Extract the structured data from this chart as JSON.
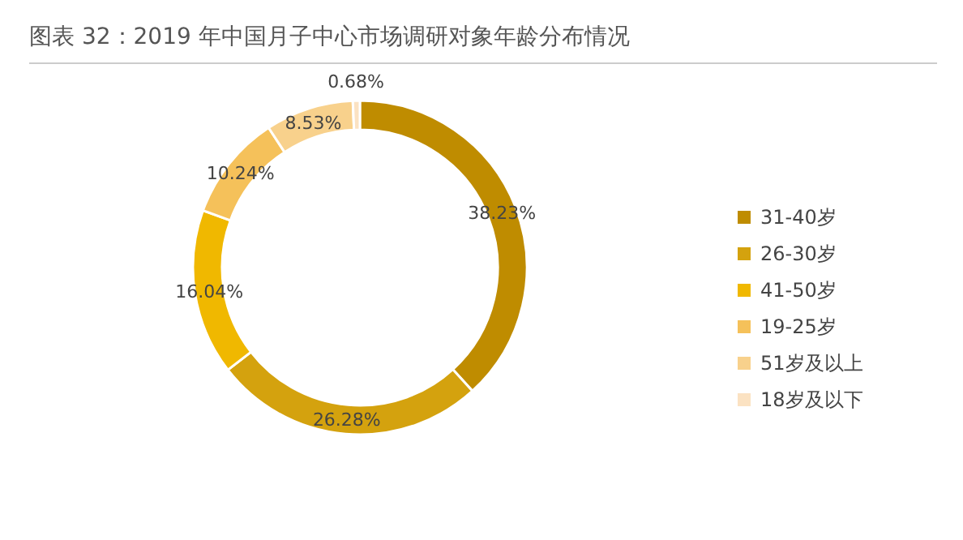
{
  "chart_data": {
    "type": "donut",
    "title": "图表 32：2019 年中国月子中心市场调研对象年龄分布情况",
    "categories": [
      "31-40岁",
      "26-30岁",
      "41-50岁",
      "19-25岁",
      "51岁及以上",
      "18岁及以下"
    ],
    "values": [
      38.23,
      26.28,
      16.04,
      10.24,
      8.53,
      0.68
    ],
    "colors": [
      "#bf8c00",
      "#d4a20e",
      "#f0b800",
      "#f5c15a",
      "#f8d18c",
      "#fbe2c2"
    ],
    "value_labels": [
      "38.23%",
      "26.28%",
      "16.04%",
      "10.24%",
      "8.53%",
      "0.68%"
    ],
    "legend": "right"
  }
}
